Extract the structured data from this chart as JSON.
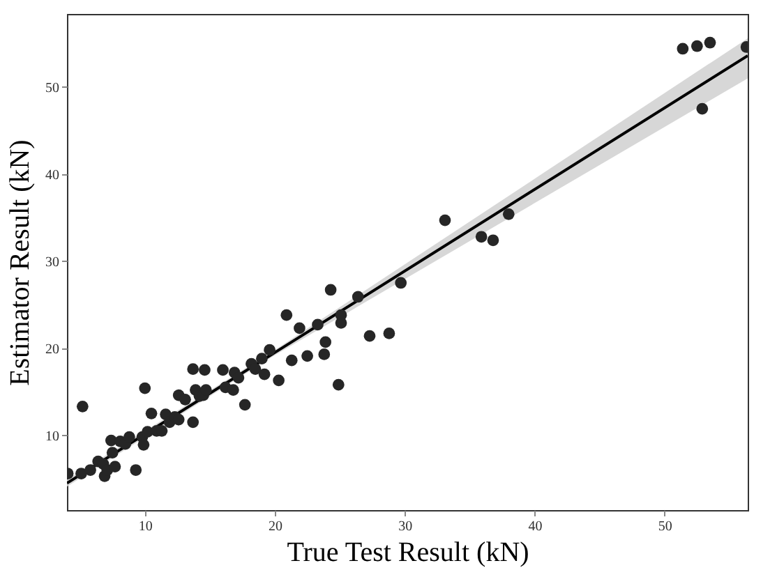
{
  "chart_data": {
    "type": "scatter",
    "xlabel": "True Test Result (kN)",
    "ylabel": "Estimator Result (kN)",
    "xlim": [
      4,
      56.4
    ],
    "ylim": [
      1.4,
      58.4
    ],
    "xticks": [
      10,
      20,
      30,
      40,
      50
    ],
    "yticks": [
      10,
      20,
      30,
      40,
      50
    ],
    "grid": false,
    "marker": "circle",
    "series": [
      {
        "type": "scatter",
        "color": "#262626",
        "x": [
          4.06,
          5.1,
          5.2,
          5.8,
          6.4,
          6.8,
          6.9,
          7.1,
          7.4,
          7.5,
          7.7,
          8.1,
          8.5,
          8.8,
          9.3,
          9.8,
          9.9,
          10,
          10.2,
          10.5,
          10.9,
          11.3,
          11.6,
          11.9,
          12.3,
          12.6,
          12.6,
          13.1,
          13.7,
          13.7,
          13.9,
          14.2,
          14.5,
          14.6,
          14.7,
          16,
          16.2,
          16.8,
          16.9,
          17.2,
          17.7,
          18.2,
          18.5,
          19.0,
          19.2,
          19.6,
          20.3,
          20.9,
          21.3,
          21.9,
          22.5,
          23.3,
          23.8,
          23.9,
          24.3,
          24.9,
          25.1,
          25.1,
          26.4,
          27.3,
          28.8,
          29.7,
          33.1,
          35.9,
          36.8,
          38.0,
          51.4,
          52.5,
          52.9,
          53.5,
          56.3
        ],
        "values": [
          5.6,
          5.6,
          13.3,
          6.0,
          7.0,
          6.7,
          5.3,
          6.0,
          9.4,
          8.0,
          6.4,
          9.3,
          9.0,
          9.8,
          6.0,
          9.8,
          8.9,
          15.4,
          10.4,
          12.5,
          10.5,
          10.5,
          12.4,
          11.5,
          12.1,
          11.8,
          14.6,
          14.1,
          17.6,
          11.5,
          15.2,
          14.5,
          14.6,
          17.5,
          15.2,
          17.5,
          15.5,
          15.2,
          17.2,
          16.6,
          13.5,
          18.2,
          17.6,
          18.8,
          17.0,
          19.8,
          16.3,
          23.8,
          18.6,
          22.3,
          19.1,
          22.7,
          19.3,
          20.7,
          26.7,
          15.8,
          22.9,
          23.8,
          25.9,
          21.4,
          21.7,
          27.5,
          34.7,
          32.8,
          32.4,
          35.4,
          54.4,
          54.7,
          47.5,
          55.1,
          54.6
        ]
      },
      {
        "type": "line",
        "marker": "none",
        "color": "#000000",
        "x": [
          4,
          20,
          56.4
        ],
        "values": [
          4.5,
          19.5,
          53.6
        ],
        "lower": [
          4.1,
          19.2,
          51.0
        ],
        "upper": [
          4.9,
          19.8,
          55.6
        ]
      }
    ]
  }
}
